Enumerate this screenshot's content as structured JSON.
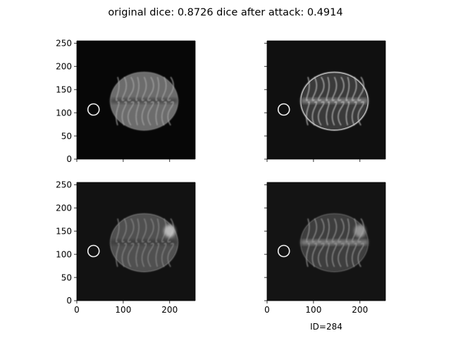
{
  "title": "original dice: 0.8726 dice after attack: 0.4914",
  "caption": "ID=284",
  "chart_data": {
    "type": "image-grid",
    "title": "original dice: 0.8726 dice after attack: 0.4914",
    "panels": [
      {
        "modality_index": 1,
        "xlim": [
          0,
          255
        ],
        "ylim": [
          0,
          255
        ],
        "bg_color": "#070707",
        "marker": {
          "x": 36,
          "y": 107
        },
        "show_ytick_labels": true,
        "show_xtick_labels": false
      },
      {
        "modality_index": 2,
        "xlim": [
          0,
          255
        ],
        "ylim": [
          0,
          255
        ],
        "bg_color": "#101010",
        "marker": {
          "x": 36,
          "y": 107
        },
        "show_ytick_labels": false,
        "show_xtick_labels": false
      },
      {
        "modality_index": 3,
        "xlim": [
          0,
          255
        ],
        "ylim": [
          0,
          255
        ],
        "bg_color": "#121212",
        "marker": {
          "x": 36,
          "y": 107
        },
        "show_ytick_labels": true,
        "show_xtick_labels": true
      },
      {
        "modality_index": 4,
        "xlim": [
          0,
          255
        ],
        "ylim": [
          0,
          255
        ],
        "bg_color": "#141414",
        "marker": {
          "x": 36,
          "y": 107
        },
        "show_ytick_labels": false,
        "show_xtick_labels": true
      }
    ],
    "xticks": [
      0,
      100,
      200
    ],
    "yticks": [
      0,
      50,
      100,
      150,
      200,
      250
    ],
    "caption": "ID=284"
  }
}
